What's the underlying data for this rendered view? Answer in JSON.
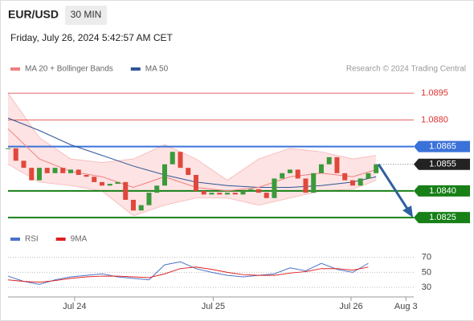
{
  "header": {
    "symbol": "EUR/USD",
    "timeframe": "30 MIN",
    "timestamp": "Friday, July 26, 2024 5:42:57 AM CET",
    "credit": "Research © 2024 Trading Central"
  },
  "chart_data": [
    {
      "type": "candlestick",
      "legend": [
        {
          "name": "MA 20 + Bollinger Bands",
          "color": "#f08080"
        },
        {
          "name": "MA 50",
          "color": "#2f5597"
        }
      ],
      "close": [
        1.0864,
        1.0857,
        1.0853,
        1.0846,
        1.0853,
        1.085,
        1.0853,
        1.085,
        1.0852,
        1.0849,
        1.0848,
        1.0845,
        1.0843,
        1.0844,
        1.0845,
        1.0835,
        1.0829,
        1.0832,
        1.0839,
        1.0843,
        1.0855,
        1.0862,
        1.0853,
        1.0849,
        1.084,
        1.0838,
        1.0839,
        1.0838,
        1.0839,
        1.0838,
        1.084,
        1.0841,
        1.0839,
        1.0836,
        1.0847,
        1.085,
        1.0852,
        1.0847,
        1.0839,
        1.085,
        1.0855,
        1.0859,
        1.085,
        1.0846,
        1.0843,
        1.0847,
        1.085,
        1.0855
      ],
      "up_color": "#3a9a3a",
      "down_color": "#e0483c",
      "ma_x": [
        0,
        4,
        8,
        12,
        16,
        20,
        24,
        28,
        32,
        36,
        40,
        44,
        47
      ],
      "ma20": [
        1.0875,
        1.0858,
        1.0851,
        1.0848,
        1.0842,
        1.0848,
        1.0842,
        1.084,
        1.0842,
        1.0848,
        1.085,
        1.0848,
        1.0852
      ],
      "ma50": [
        1.0881,
        1.0874,
        1.0866,
        1.086,
        1.0854,
        1.0849,
        1.0845,
        1.0843,
        1.0842,
        1.0842,
        1.0843,
        1.0845,
        1.0848
      ],
      "band_upper": [
        1.0895,
        1.087,
        1.0858,
        1.0856,
        1.0858,
        1.0866,
        1.0858,
        1.0846,
        1.0858,
        1.0864,
        1.0862,
        1.0858,
        1.086
      ],
      "band_lower": [
        1.0855,
        1.0845,
        1.0843,
        1.084,
        1.0826,
        1.0832,
        1.0836,
        1.0836,
        1.0832,
        1.0836,
        1.084,
        1.0841,
        1.0846
      ],
      "levels": [
        {
          "value": 1.0895,
          "label": "1.0895",
          "color": "#e03030",
          "line": true,
          "box": false
        },
        {
          "value": 1.088,
          "label": "1.0880",
          "color": "#e03030",
          "line": true,
          "box": false
        },
        {
          "value": 1.0865,
          "label": "1.0865",
          "color": "#3b72d9",
          "line": true,
          "box": true
        },
        {
          "value": 1.0855,
          "label": "1.0855",
          "color": "#222222",
          "line": false,
          "box": true
        },
        {
          "value": 1.084,
          "label": "1.0840",
          "color": "#178017",
          "line": true,
          "box": true
        },
        {
          "value": 1.0825,
          "label": "1.0825",
          "color": "#178017",
          "line": true,
          "box": true
        }
      ],
      "ylim": [
        1.0821,
        1.0905
      ],
      "xlim": [
        0,
        51.8
      ]
    },
    {
      "type": "line",
      "legend": [
        {
          "name": "RSI",
          "color": "#4a72c8"
        },
        {
          "name": "9MA",
          "color": "#e02020"
        }
      ],
      "x": [
        0,
        2,
        4,
        6,
        8,
        10,
        12,
        14,
        16,
        18,
        20,
        22,
        24,
        26,
        28,
        30,
        32,
        34,
        36,
        38,
        40,
        42,
        44,
        46
      ],
      "series": [
        {
          "name": "RSI",
          "color": "#4a72c8",
          "values": [
            45,
            38,
            34,
            40,
            44,
            46,
            48,
            44,
            42,
            40,
            60,
            64,
            55,
            50,
            46,
            44,
            46,
            48,
            56,
            52,
            62,
            54,
            50,
            62
          ]
        },
        {
          "name": "9MA",
          "color": "#e02020",
          "values": [
            40,
            38,
            37,
            39,
            42,
            44,
            45,
            45,
            44,
            43,
            48,
            55,
            57,
            54,
            50,
            47,
            46,
            46,
            49,
            51,
            55,
            55,
            53,
            57
          ]
        }
      ],
      "ylim": [
        12,
        92
      ],
      "yticks": [
        70,
        50,
        30
      ],
      "xlim": [
        0,
        51.8
      ],
      "xticks": [
        {
          "value": 8.5,
          "label": "Jul 24"
        },
        {
          "value": 26.2,
          "label": "Jul 25"
        },
        {
          "value": 43.8,
          "label": "Jul 26"
        },
        {
          "value": 50.8,
          "label": "Aug 3"
        }
      ]
    }
  ]
}
